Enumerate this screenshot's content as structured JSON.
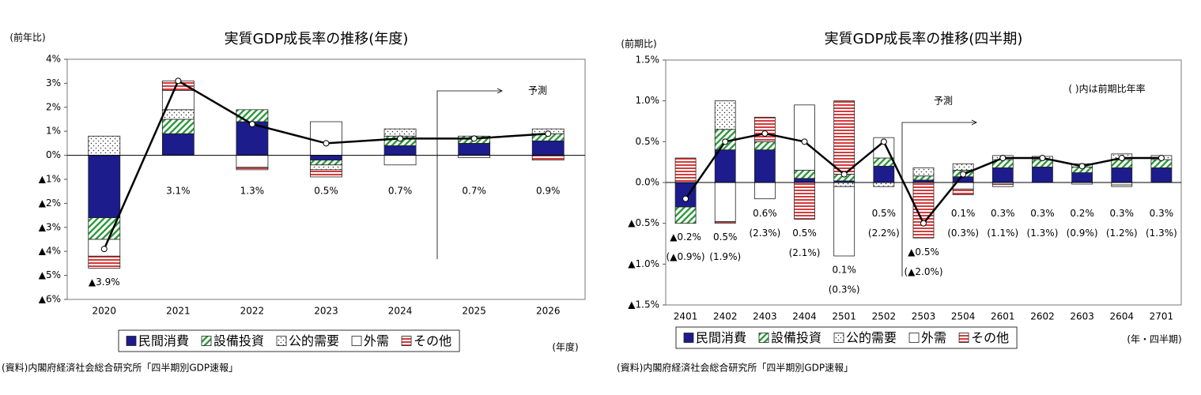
{
  "chart_data": [
    {
      "type": "stacked_bar_line",
      "title": "実質GDP成長率の推移(年度)",
      "y_label": "(前年比)",
      "x_label": "(年度)",
      "source": "(資料)内閣府経済社会総合研究所「四半期別GDP速報」",
      "forecast_label": "予測",
      "categories": [
        "2020",
        "2021",
        "2022",
        "2023",
        "2024",
        "2025",
        "2026"
      ],
      "series": [
        {
          "name": "民間消費",
          "color": "#1c1c8c",
          "pattern": "solid",
          "values": [
            -2.6,
            0.9,
            1.4,
            -0.2,
            0.4,
            0.5,
            0.6
          ]
        },
        {
          "name": "設備投資",
          "color": "#2e9a3c",
          "pattern": "diagonal",
          "values": [
            -0.9,
            0.6,
            0.5,
            -0.2,
            0.4,
            0.3,
            0.3
          ]
        },
        {
          "name": "公的需要",
          "color": "#333333",
          "pattern": "dots",
          "values": [
            0.8,
            0.4,
            0,
            -0.2,
            0.3,
            0,
            0.2
          ]
        },
        {
          "name": "外需",
          "color": "#ffffff",
          "pattern": "none",
          "values": [
            -0.7,
            0.8,
            -0.5,
            1.4,
            -0.4,
            -0.1,
            0
          ]
        },
        {
          "name": "その他",
          "color": "#d43c3c",
          "pattern": "horizontal",
          "values": [
            -0.5,
            0.4,
            -0.1,
            -0.3,
            0,
            0,
            -0.2
          ]
        }
      ],
      "line": {
        "values": [
          -3.9,
          3.1,
          1.3,
          0.5,
          0.7,
          0.7,
          0.9
        ],
        "value_labels": [
          "▲3.9%",
          "3.1%",
          "1.3%",
          "0.5%",
          "0.7%",
          "0.7%",
          "0.9%"
        ]
      },
      "ylim": [
        -6,
        4
      ],
      "yticks": [
        {
          "value": -6,
          "label": "▲6%"
        },
        {
          "value": -5,
          "label": "▲5%"
        },
        {
          "value": -4,
          "label": "▲4%"
        },
        {
          "value": -3,
          "label": "▲3%"
        },
        {
          "value": -2,
          "label": "▲2%"
        },
        {
          "value": -1,
          "label": "▲1%"
        },
        {
          "value": 0,
          "label": "0%"
        },
        {
          "value": 1,
          "label": "1%"
        },
        {
          "value": 2,
          "label": "2%"
        },
        {
          "value": 3,
          "label": "3%"
        },
        {
          "value": 4,
          "label": "4%"
        }
      ]
    },
    {
      "type": "stacked_bar_line",
      "title": "実質GDP成長率の推移(四半期)",
      "y_label": "(前期比)",
      "x_label": "(年・四半期)",
      "source": "(資料)内閣府経済社会総合研究所「四半期別GDP速報」",
      "forecast_label": "予測",
      "note": "(  )内は前期比年率",
      "categories": [
        "2401",
        "2402",
        "2403",
        "2404",
        "2501",
        "2502",
        "2503",
        "2504",
        "2601",
        "2602",
        "2603",
        "2604",
        "2701"
      ],
      "series": [
        {
          "name": "民間消費",
          "color": "#1c1c8c",
          "pattern": "solid",
          "values": [
            -0.3,
            0.4,
            0.4,
            0.05,
            0.02,
            0.2,
            0.03,
            0.07,
            0.18,
            0.19,
            0.12,
            0.18,
            0.18
          ]
        },
        {
          "name": "設備投資",
          "color": "#2e9a3c",
          "pattern": "diagonal",
          "values": [
            -0.2,
            0.25,
            0.1,
            0.1,
            0.08,
            0.1,
            0.05,
            0.08,
            0.1,
            0.09,
            0.07,
            0.1,
            0.1
          ]
        },
        {
          "name": "公的需要",
          "color": "#333333",
          "pattern": "dots",
          "values": [
            0,
            0.35,
            0,
            0,
            -0.05,
            -0.05,
            0.1,
            0.08,
            0.05,
            0.04,
            0.04,
            0.07,
            0.05
          ]
        },
        {
          "name": "外需",
          "color": "#ffffff",
          "pattern": "none",
          "values": [
            0,
            -0.48,
            -0.2,
            0.8,
            -0.85,
            0.25,
            0,
            -0.08,
            -0.02,
            0,
            -0.02,
            -0.03,
            0
          ]
        },
        {
          "name": "その他",
          "color": "#d43c3c",
          "pattern": "horizontal",
          "values": [
            0.3,
            -0.02,
            0.3,
            -0.45,
            0.9,
            0,
            -0.68,
            -0.07,
            -0.03,
            0,
            0,
            -0.02,
            0
          ]
        }
      ],
      "line": {
        "values": [
          -0.2,
          0.5,
          0.6,
          0.5,
          0.1,
          0.5,
          -0.5,
          0.1,
          0.3,
          0.3,
          0.2,
          0.3,
          0.3
        ],
        "value_labels": [
          "▲0.2%",
          "0.5%",
          "0.6%",
          "0.5%",
          "0.1%",
          "0.5%",
          "▲0.5%",
          "0.1%",
          "0.3%",
          "0.3%",
          "0.2%",
          "0.3%",
          "0.3%"
        ],
        "annual_labels": [
          "(▲0.9%)",
          "(1.9%)",
          "(2.3%)",
          "(2.1%)",
          "(0.3%)",
          "(2.2%)",
          "(▲2.0%)",
          "(0.3%)",
          "(1.1%)",
          "(1.3%)",
          "(0.9%)",
          "(1.2%)",
          "(1.3%)"
        ]
      },
      "ylim": [
        -1.5,
        1.5
      ],
      "yticks": [
        {
          "value": -1.5,
          "label": "▲1.5%"
        },
        {
          "value": -1,
          "label": "▲1.0%"
        },
        {
          "value": -0.5,
          "label": "▲0.5%"
        },
        {
          "value": 0,
          "label": "0.0%"
        },
        {
          "value": 0.5,
          "label": "0.5%"
        },
        {
          "value": 1,
          "label": "1.0%"
        },
        {
          "value": 1.5,
          "label": "1.5%"
        }
      ]
    }
  ]
}
